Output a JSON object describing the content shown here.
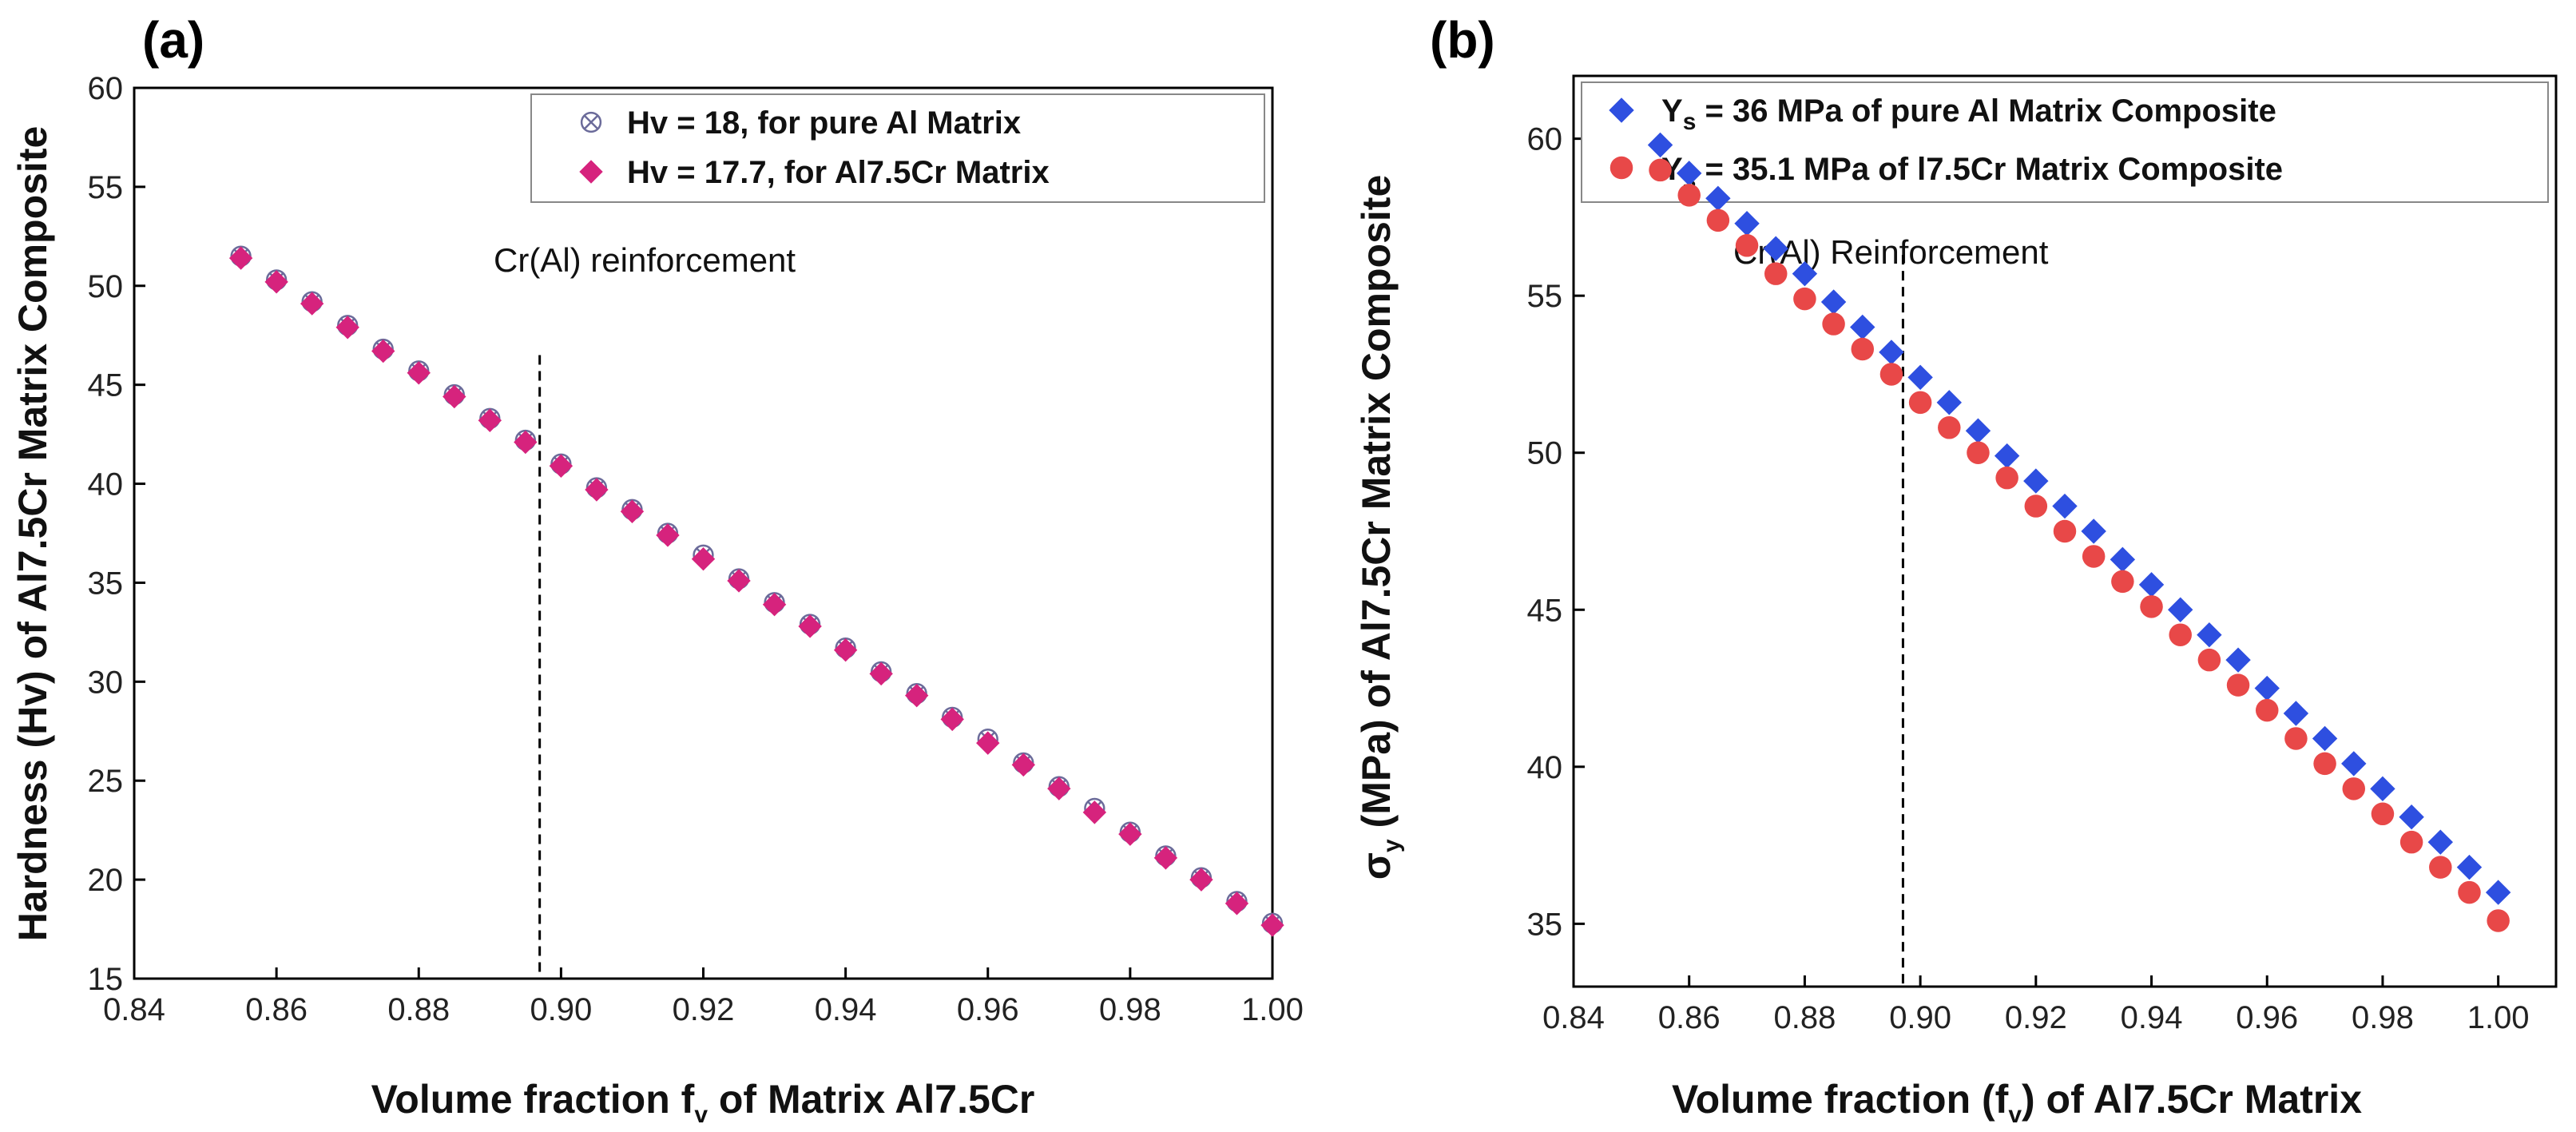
{
  "chart_data": [
    {
      "type": "scatter",
      "panel_label": "(a)",
      "xlabel_main": "Volume fraction f",
      "xlabel_sub": "v",
      "xlabel_rest": " of Matrix Al7.5Cr",
      "ylabel": "Hardness (Hv) of Al7.5Cr Matrix Composite",
      "xlim": [
        0.84,
        1.0
      ],
      "ylim": [
        15,
        60
      ],
      "xticks": [
        "0.84",
        "0.86",
        "0.88",
        "0.90",
        "0.92",
        "0.94",
        "0.96",
        "0.98",
        "1.00"
      ],
      "yticks": [
        "15",
        "20",
        "25",
        "30",
        "35",
        "40",
        "45",
        "50",
        "55",
        "60"
      ],
      "annotation": "Cr(Al) reinforcement",
      "annotation_line_x": 0.897,
      "annotation_line_top": 46.5,
      "legend_position": "top-right",
      "series": [
        {
          "name": "Hv = 18, for pure Al Matrix",
          "marker": "circle-x",
          "color": "#6b6b9a",
          "x": [
            0.855,
            0.86,
            0.865,
            0.87,
            0.875,
            0.88,
            0.885,
            0.89,
            0.895,
            0.9,
            0.905,
            0.91,
            0.915,
            0.92,
            0.925,
            0.93,
            0.935,
            0.94,
            0.945,
            0.95,
            0.955,
            0.96,
            0.965,
            0.97,
            0.975,
            0.98,
            0.985,
            0.99,
            0.995,
            1.0
          ],
          "values": [
            51.5,
            50.3,
            49.2,
            48.0,
            46.8,
            45.7,
            44.5,
            43.3,
            42.2,
            41.0,
            39.8,
            38.7,
            37.5,
            36.4,
            35.2,
            34.0,
            32.9,
            31.7,
            30.5,
            29.4,
            28.2,
            27.1,
            25.9,
            24.7,
            23.6,
            22.4,
            21.2,
            20.1,
            18.9,
            17.8
          ]
        },
        {
          "name": "Hv = 17.7, for Al7.5Cr Matrix",
          "marker": "diamond",
          "color": "#d6237d",
          "x": [
            0.855,
            0.86,
            0.865,
            0.87,
            0.875,
            0.88,
            0.885,
            0.89,
            0.895,
            0.9,
            0.905,
            0.91,
            0.915,
            0.92,
            0.925,
            0.93,
            0.935,
            0.94,
            0.945,
            0.95,
            0.955,
            0.96,
            0.965,
            0.97,
            0.975,
            0.98,
            0.985,
            0.99,
            0.995,
            1.0
          ],
          "values": [
            51.4,
            50.2,
            49.1,
            47.9,
            46.7,
            45.6,
            44.4,
            43.2,
            42.1,
            40.9,
            39.7,
            38.6,
            37.4,
            36.2,
            35.1,
            33.9,
            32.8,
            31.6,
            30.4,
            29.3,
            28.1,
            26.9,
            25.8,
            24.6,
            23.4,
            22.3,
            21.1,
            20.0,
            18.8,
            17.7
          ]
        }
      ]
    },
    {
      "type": "scatter",
      "panel_label": "(b)",
      "xlabel_main": "Volume fraction (f",
      "xlabel_sub": "v",
      "xlabel_rest": ") of Al7.5Cr Matrix",
      "ylabel_sym": "σ",
      "ylabel_sub": "y",
      "ylabel_rest": " (MPa) of Al7.5Cr Matrix Composite",
      "xlim": [
        0.84,
        1.01
      ],
      "ylim": [
        33,
        62
      ],
      "xticks": [
        "0.84",
        "0.86",
        "0.88",
        "0.90",
        "0.92",
        "0.94",
        "0.96",
        "0.98",
        "1.00"
      ],
      "yticks": [
        "35",
        "40",
        "45",
        "50",
        "55",
        "60"
      ],
      "annotation": "Cr(Al) Reinforcement",
      "annotation_line_x": 0.897,
      "annotation_line_top": 56.3,
      "legend_position": "top-right",
      "series": [
        {
          "name_pre": "Y",
          "name_sub": "s",
          "name_post": " = 36 MPa of pure Al Matrix Composite",
          "marker": "diamond",
          "color": "#2e4fe0",
          "x": [
            0.855,
            0.86,
            0.865,
            0.87,
            0.875,
            0.88,
            0.885,
            0.89,
            0.895,
            0.9,
            0.905,
            0.91,
            0.915,
            0.92,
            0.925,
            0.93,
            0.935,
            0.94,
            0.945,
            0.95,
            0.955,
            0.96,
            0.965,
            0.97,
            0.975,
            0.98,
            0.985,
            0.99,
            0.995,
            1.0
          ],
          "values": [
            59.8,
            58.9,
            58.1,
            57.3,
            56.5,
            55.7,
            54.8,
            54.0,
            53.2,
            52.4,
            51.6,
            50.7,
            49.9,
            49.1,
            48.3,
            47.5,
            46.6,
            45.8,
            45.0,
            44.2,
            43.4,
            42.5,
            41.7,
            40.9,
            40.1,
            39.3,
            38.4,
            37.6,
            36.8,
            36.0
          ]
        },
        {
          "name_pre": "Y",
          "name_sub": "s",
          "name_post": " = 35.1 MPa of l7.5Cr Matrix Composite",
          "marker": "circle",
          "color": "#e84848",
          "x": [
            0.855,
            0.86,
            0.865,
            0.87,
            0.875,
            0.88,
            0.885,
            0.89,
            0.895,
            0.9,
            0.905,
            0.91,
            0.915,
            0.92,
            0.925,
            0.93,
            0.935,
            0.94,
            0.945,
            0.95,
            0.955,
            0.96,
            0.965,
            0.97,
            0.975,
            0.98,
            0.985,
            0.99,
            0.995,
            1.0
          ],
          "values": [
            59.0,
            58.2,
            57.4,
            56.6,
            55.7,
            54.9,
            54.1,
            53.3,
            52.5,
            51.6,
            50.8,
            50.0,
            49.2,
            48.3,
            47.5,
            46.7,
            45.9,
            45.1,
            44.2,
            43.4,
            42.6,
            41.8,
            40.9,
            40.1,
            39.3,
            38.5,
            37.6,
            36.8,
            36.0,
            35.1
          ]
        }
      ]
    }
  ]
}
